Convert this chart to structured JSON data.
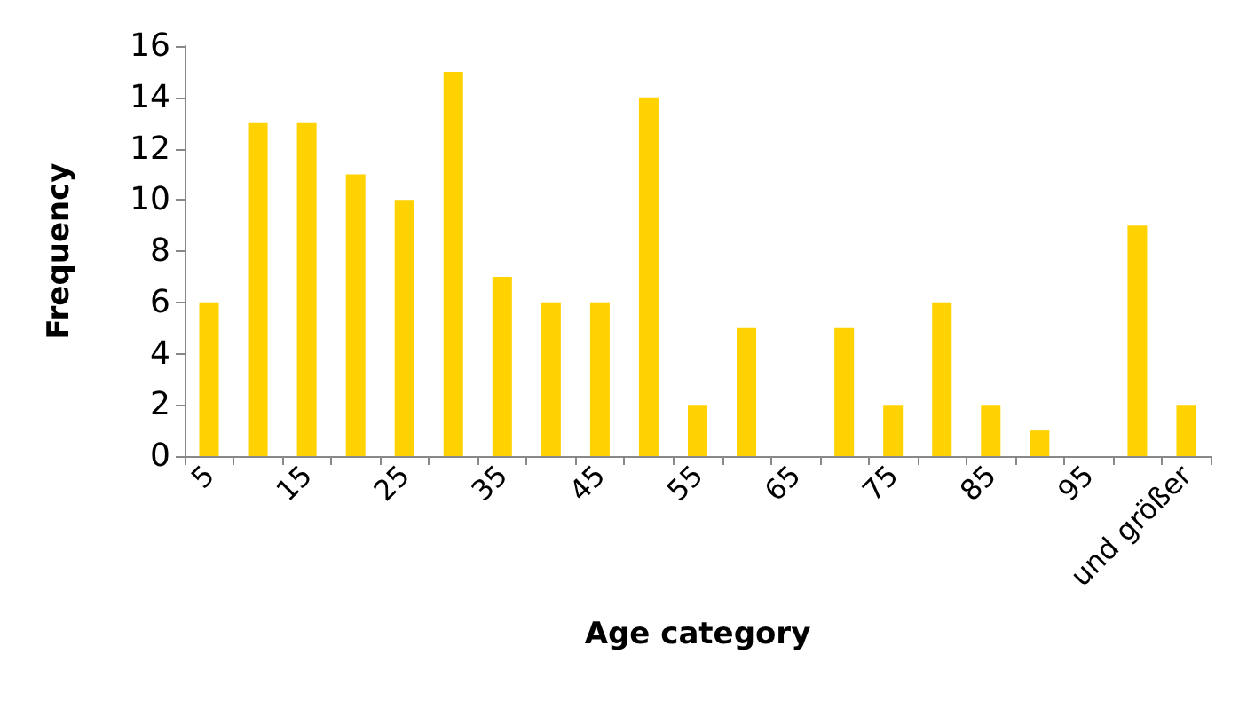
{
  "chart_data": {
    "type": "bar",
    "xlabel": "Age category",
    "ylabel": "Frequency",
    "categories": [
      "5",
      null,
      "15",
      null,
      "25",
      null,
      "35",
      null,
      "45",
      null,
      "55",
      null,
      "65",
      null,
      "75",
      null,
      "85",
      null,
      "95",
      null,
      "und größer"
    ],
    "values": [
      6,
      13,
      13,
      11,
      10,
      15,
      7,
      6,
      6,
      14,
      2,
      5,
      0,
      5,
      2,
      6,
      2,
      1,
      0,
      9,
      2
    ],
    "color": "#ffd200",
    "ylim": [
      0,
      16
    ],
    "yticks": [
      0,
      2,
      4,
      6,
      8,
      10,
      12,
      14,
      16
    ],
    "grid": false
  }
}
